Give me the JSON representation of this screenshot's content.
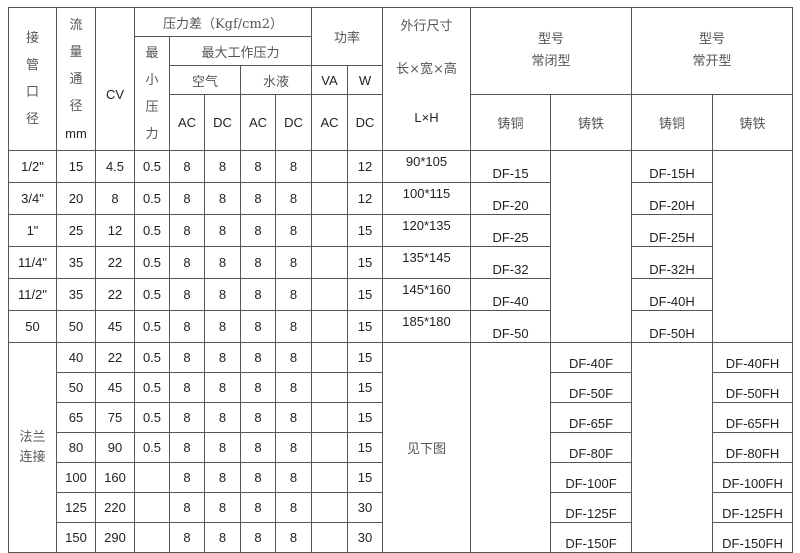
{
  "header": {
    "pipe_size": [
      "接",
      "管",
      "口",
      "径"
    ],
    "flow_dia": [
      "流",
      "量",
      "通",
      "径"
    ],
    "flow_unit": "mm",
    "cv": "CV",
    "pressure_diff": "压力差（Kgf/cm2）",
    "min_pressure": [
      "最",
      "小",
      "压",
      "力"
    ],
    "max_working_pressure": "最大工作压力",
    "air": "空气",
    "water": "水液",
    "ac": "AC",
    "dc": "DC",
    "power": "功率",
    "va": "VA",
    "w": "W",
    "dimensions": "外行尺寸",
    "dimensions_sub": "长×宽×高",
    "dimensions_unit": "L×H",
    "nc_model": "型号",
    "nc_type": "常闭型",
    "no_model": "型号",
    "no_type": "常开型",
    "cast_copper": "铸铜",
    "cast_iron": "铸铁"
  },
  "threaded_rows": [
    {
      "pipe": "1/2\"",
      "dn": "15",
      "cv": "4.5",
      "min": "0.5",
      "air_ac": "8",
      "air_dc": "8",
      "water_ac": "8",
      "water_dc": "8",
      "va": "",
      "w": "12",
      "dim": "90*105",
      "nc": "DF-15",
      "no": "DF-15H"
    },
    {
      "pipe": "3/4\"",
      "dn": "20",
      "cv": "8",
      "min": "0.5",
      "air_ac": "8",
      "air_dc": "8",
      "water_ac": "8",
      "water_dc": "8",
      "va": "",
      "w": "12",
      "dim": "100*115",
      "nc": "DF-20",
      "no": "DF-20H"
    },
    {
      "pipe": "1\"",
      "dn": "25",
      "cv": "12",
      "min": "0.5",
      "air_ac": "8",
      "air_dc": "8",
      "water_ac": "8",
      "water_dc": "8",
      "va": "",
      "w": "15",
      "dim": "120*135",
      "nc": "DF-25",
      "no": "DF-25H"
    },
    {
      "pipe": "11/4\"",
      "dn": "35",
      "cv": "22",
      "min": "0.5",
      "air_ac": "8",
      "air_dc": "8",
      "water_ac": "8",
      "water_dc": "8",
      "va": "",
      "w": "15",
      "dim": "135*145",
      "nc": "DF-32",
      "no": "DF-32H"
    },
    {
      "pipe": "11/2\"",
      "dn": "35",
      "cv": "22",
      "min": "0.5",
      "air_ac": "8",
      "air_dc": "8",
      "water_ac": "8",
      "water_dc": "8",
      "va": "",
      "w": "15",
      "dim": "145*160",
      "nc": "DF-40",
      "no": "DF-40H"
    },
    {
      "pipe": "50",
      "dn": "50",
      "cv": "45",
      "min": "0.5",
      "air_ac": "8",
      "air_dc": "8",
      "water_ac": "8",
      "water_dc": "8",
      "va": "",
      "w": "15",
      "dim": "185*180",
      "nc": "DF-50",
      "no": "DF-50H"
    }
  ],
  "flange_label": [
    "法兰",
    "连接"
  ],
  "flange_dim": "见下图",
  "flange_rows": [
    {
      "dn": "40",
      "cv": "22",
      "min": "0.5",
      "air_ac": "8",
      "air_dc": "8",
      "water_ac": "8",
      "water_dc": "8",
      "va": "",
      "w": "15",
      "nc": "DF-40F",
      "no": "DF-40FH"
    },
    {
      "dn": "50",
      "cv": "45",
      "min": "0.5",
      "air_ac": "8",
      "air_dc": "8",
      "water_ac": "8",
      "water_dc": "8",
      "va": "",
      "w": "15",
      "nc": "DF-50F",
      "no": "DF-50FH"
    },
    {
      "dn": "65",
      "cv": "75",
      "min": "0.5",
      "air_ac": "8",
      "air_dc": "8",
      "water_ac": "8",
      "water_dc": "8",
      "va": "",
      "w": "15",
      "nc": "DF-65F",
      "no": "DF-65FH"
    },
    {
      "dn": "80",
      "cv": "90",
      "min": "0.5",
      "air_ac": "8",
      "air_dc": "8",
      "water_ac": "8",
      "water_dc": "8",
      "va": "",
      "w": "15",
      "nc": "DF-80F",
      "no": "DF-80FH"
    },
    {
      "dn": "100",
      "cv": "160",
      "min": "",
      "air_ac": "8",
      "air_dc": "8",
      "water_ac": "8",
      "water_dc": "8",
      "va": "",
      "w": "15",
      "nc": "DF-100F",
      "no": "DF-100FH"
    },
    {
      "dn": "125",
      "cv": "220",
      "min": "",
      "air_ac": "8",
      "air_dc": "8",
      "water_ac": "8",
      "water_dc": "8",
      "va": "",
      "w": "30",
      "nc": "DF-125F",
      "no": "DF-125FH"
    },
    {
      "dn": "150",
      "cv": "290",
      "min": "",
      "air_ac": "8",
      "air_dc": "8",
      "water_ac": "8",
      "water_dc": "8",
      "va": "",
      "w": "30",
      "nc": "DF-150F",
      "no": "DF-150FH"
    }
  ]
}
